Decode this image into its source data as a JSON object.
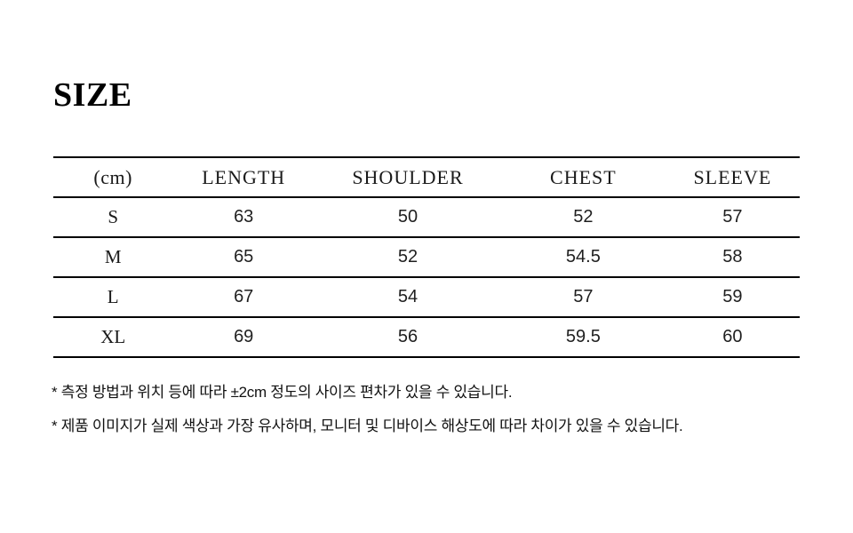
{
  "page": {
    "title": "SIZE"
  },
  "size_table": {
    "unit_label": "(cm)",
    "columns": [
      "LENGTH",
      "SHOULDER",
      "CHEST",
      "SLEEVE"
    ],
    "rows": [
      {
        "size": "S",
        "values": [
          "63",
          "50",
          "52",
          "57"
        ]
      },
      {
        "size": "M",
        "values": [
          "65",
          "52",
          "54.5",
          "58"
        ]
      },
      {
        "size": "L",
        "values": [
          "67",
          "54",
          "57",
          "59"
        ]
      },
      {
        "size": "XL",
        "values": [
          "69",
          "56",
          "59.5",
          "60"
        ]
      }
    ]
  },
  "notes": [
    "* 측정 방법과 위치 등에 따라 ±2cm 정도의 사이즈 편차가 있을 수 있습니다.",
    "* 제품 이미지가 실제 색상과 가장 유사하며, 모니터 및 디바이스 해상도에 따라 차이가 있을 수 있습니다."
  ],
  "colors": {
    "background": "#ffffff",
    "text": "#000000",
    "table_line": "#000000"
  }
}
